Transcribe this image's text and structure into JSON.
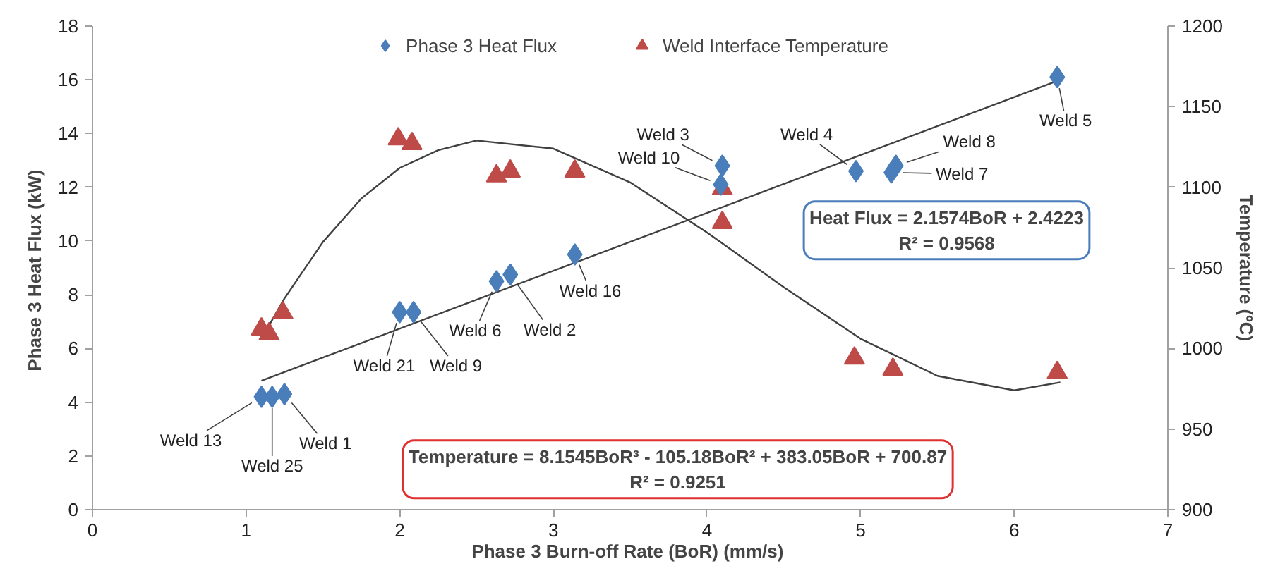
{
  "chart_data": {
    "type": "scatter",
    "xlabel": "Phase 3  Burn-off Rate (BoR) (mm/s)",
    "ylabel": "Phase 3  Heat Flux (kW)",
    "y2label": "Temperature (ºC)",
    "xlim": [
      0,
      7
    ],
    "xticks": [
      0,
      1,
      2,
      3,
      4,
      5,
      6,
      7
    ],
    "ylim": [
      0,
      18
    ],
    "yticks": [
      0,
      2,
      4,
      6,
      8,
      10,
      12,
      14,
      16,
      18
    ],
    "y2lim": [
      900,
      1200
    ],
    "y2ticks": [
      900,
      950,
      1000,
      1050,
      1100,
      1150,
      1200
    ],
    "grid": false,
    "legend": "top",
    "series": [
      {
        "name": "Phase 3 Heat Flux",
        "color": "#4a7ebb",
        "marker": "diamond",
        "x": [
          1.1,
          1.17,
          1.25,
          2.0,
          2.09,
          2.63,
          2.72,
          3.14,
          4.1,
          4.09,
          4.97,
          5.23,
          5.2,
          6.28
        ],
        "values": [
          4.2,
          4.2,
          4.3,
          7.35,
          7.35,
          8.5,
          8.75,
          9.5,
          12.8,
          12.1,
          12.6,
          12.8,
          12.55,
          16.1
        ]
      },
      {
        "name": "Weld Interface Temperature",
        "color": "#be4b48",
        "marker": "triangle",
        "axis": "y2",
        "x": [
          1.1,
          1.15,
          1.24,
          1.99,
          2.08,
          2.63,
          2.72,
          3.14,
          4.1,
          4.1,
          4.96,
          5.21,
          6.28
        ],
        "values": [
          1012,
          1009,
          1022,
          1130,
          1127,
          1107,
          1110,
          1110,
          1099,
          1078,
          994,
          987,
          985
        ]
      },
      {
        "type": "line",
        "color": "#404040",
        "x": [
          1.1,
          6.3
        ],
        "values": [
          4.8,
          16.0
        ]
      },
      {
        "type": "line",
        "color": "#404040",
        "axis": "y2",
        "x": [
          1.1,
          1.25,
          1.5,
          1.75,
          2.0,
          2.25,
          2.5,
          3.0,
          3.5,
          4.0,
          4.5,
          5.0,
          5.5,
          6.0,
          6.3
        ],
        "values": [
          1006,
          1031,
          1066,
          1093,
          1112,
          1123,
          1129,
          1124,
          1103,
          1072,
          1038,
          1006,
          983,
          974,
          979
        ]
      }
    ],
    "annotations": [
      {
        "text": "Weld 13",
        "x": 1.1,
        "y": 4.2
      },
      {
        "text": "Weld 25",
        "x": 1.17,
        "y": 4.2
      },
      {
        "text": "Weld 1",
        "x": 1.25,
        "y": 4.3
      },
      {
        "text": "Weld 21",
        "x": 2.0,
        "y": 7.35
      },
      {
        "text": "Weld 9",
        "x": 2.09,
        "y": 7.35
      },
      {
        "text": "Weld 6",
        "x": 2.63,
        "y": 8.5
      },
      {
        "text": "Weld 2",
        "x": 2.72,
        "y": 8.75
      },
      {
        "text": "Weld 16",
        "x": 3.14,
        "y": 9.5
      },
      {
        "text": "Weld 3",
        "x": 4.1,
        "y": 12.8
      },
      {
        "text": "Weld 10",
        "x": 4.09,
        "y": 12.1
      },
      {
        "text": "Weld 4",
        "x": 4.97,
        "y": 12.6
      },
      {
        "text": "Weld 8",
        "x": 5.23,
        "y": 12.8
      },
      {
        "text": "Weld 7",
        "x": 5.2,
        "y": 12.55
      },
      {
        "text": "Weld 5",
        "x": 6.28,
        "y": 16.1
      },
      "Heat Flux = 2.1574BoR + 2.4223\nR² = 0.9568",
      "Temperature = 8.1545BoR³ - 105.18BoR² + 383.05BoR + 700.87\nR² = 0.9251"
    ]
  }
}
